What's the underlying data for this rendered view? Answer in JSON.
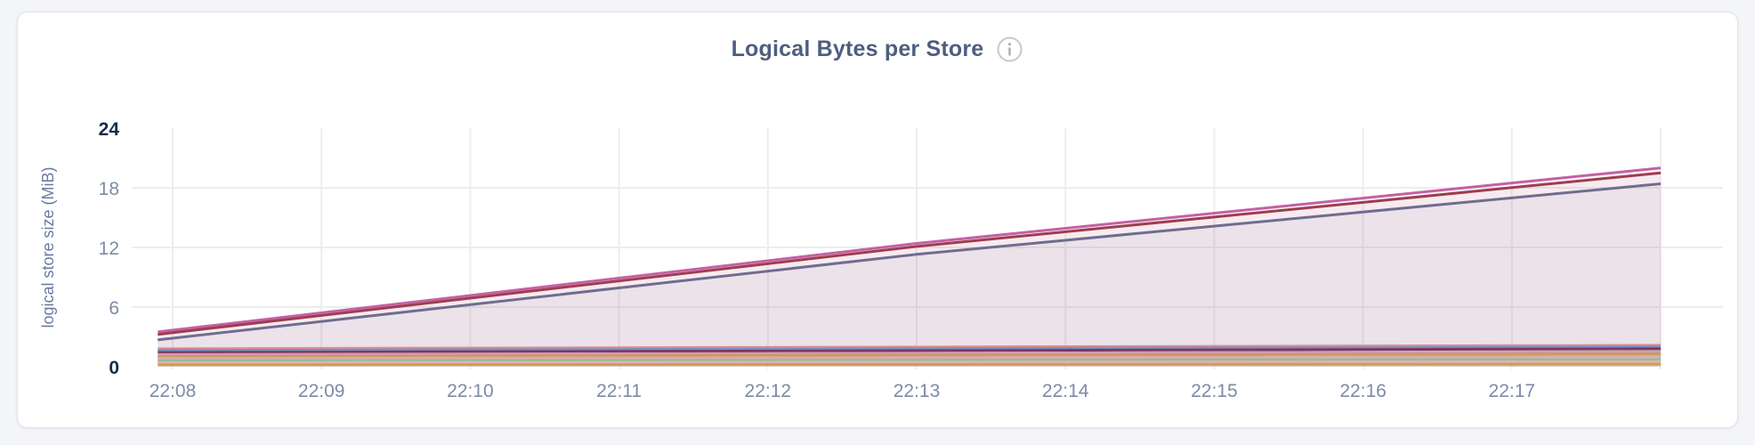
{
  "header": {
    "title": "Logical Bytes per Store",
    "info_icon": "info-circle"
  },
  "colors": {
    "page_background": "#f4f5f9",
    "card_background": "#ffffff",
    "card_border": "#e3e3e8",
    "title_color": "#4e5e7e",
    "tick_color": "#7d8aa8",
    "tick_bold_color": "#172b4d",
    "grid_color": "#ededf0",
    "axis_label_color": "#6a7aa0",
    "info_icon_color": "#c8c8cd"
  },
  "chart_data": {
    "type": "area",
    "title": "Logical Bytes per Store",
    "ylabel": "logical store size (MiB)",
    "unit": "MiB",
    "ylim": [
      0,
      24
    ],
    "y_ticks": [
      0,
      6,
      12,
      18,
      24
    ],
    "y_bold_ticks": [
      0,
      24
    ],
    "y_gridlines": [
      6,
      12,
      18
    ],
    "x_tick_labels": [
      "22:08",
      "22:09",
      "22:10",
      "22:11",
      "22:12",
      "22:13",
      "22:14",
      "22:15",
      "22:16",
      "22:17"
    ],
    "x_gridline_minutes": [
      0,
      1,
      2,
      3,
      4,
      5,
      6,
      7,
      8,
      9,
      10
    ],
    "x_data_range_minutes": [
      -0.1,
      10
    ],
    "grid": true,
    "legend_position": "none",
    "series": [
      {
        "id": "rising-pink",
        "color": "#c560a5",
        "fill_opacity": 0.06,
        "points": [
          [
            -0.1,
            3.5
          ],
          [
            5,
            12.4
          ],
          [
            10,
            20.0
          ]
        ]
      },
      {
        "id": "rising-dark-red",
        "color": "#9e3d4e",
        "fill_opacity": 0.06,
        "points": [
          [
            -0.1,
            3.25
          ],
          [
            5,
            12.1
          ],
          [
            10,
            19.5
          ]
        ]
      },
      {
        "id": "rising-slate-purple",
        "color": "#6f6d8f",
        "fill_opacity": 0.07,
        "points": [
          [
            -0.1,
            2.7
          ],
          [
            5,
            11.3
          ],
          [
            10,
            18.4
          ]
        ]
      },
      {
        "id": "flat-salmon",
        "color": "#df8a8c",
        "fill_opacity": 0.035,
        "points": [
          [
            -0.1,
            1.8
          ],
          [
            10,
            2.15
          ]
        ]
      },
      {
        "id": "flat-steel-blue",
        "color": "#7291c5",
        "fill_opacity": 0.035,
        "points": [
          [
            -0.1,
            1.62
          ],
          [
            10,
            1.98
          ]
        ]
      },
      {
        "id": "flat-dark-magenta",
        "color": "#7e3760",
        "fill_opacity": 0.035,
        "points": [
          [
            -0.1,
            1.42
          ],
          [
            10,
            1.8
          ]
        ]
      },
      {
        "id": "flat-muted-pink",
        "color": "#d49ab8",
        "fill_opacity": 0.035,
        "points": [
          [
            -0.1,
            1.22
          ],
          [
            10,
            1.5
          ]
        ]
      },
      {
        "id": "flat-tan",
        "color": "#c99c58",
        "fill_opacity": 0.035,
        "points": [
          [
            -0.1,
            1.02
          ],
          [
            10,
            1.28
          ]
        ]
      },
      {
        "id": "flat-rose",
        "color": "#dfa9ae",
        "fill_opacity": 0.035,
        "points": [
          [
            -0.1,
            0.82
          ],
          [
            10,
            1.0
          ]
        ]
      },
      {
        "id": "flat-green",
        "color": "#8fc093",
        "fill_opacity": 0.035,
        "points": [
          [
            -0.1,
            0.6
          ],
          [
            10,
            0.72
          ]
        ]
      },
      {
        "id": "flat-rose-2",
        "color": "#e3b0bb",
        "fill_opacity": 0.035,
        "points": [
          [
            -0.1,
            0.4
          ],
          [
            10,
            0.5
          ]
        ]
      },
      {
        "id": "flat-tan-2",
        "color": "#cf9f4f",
        "fill_opacity": 0.035,
        "points": [
          [
            -0.1,
            0.2
          ],
          [
            10,
            0.26
          ]
        ]
      }
    ]
  }
}
